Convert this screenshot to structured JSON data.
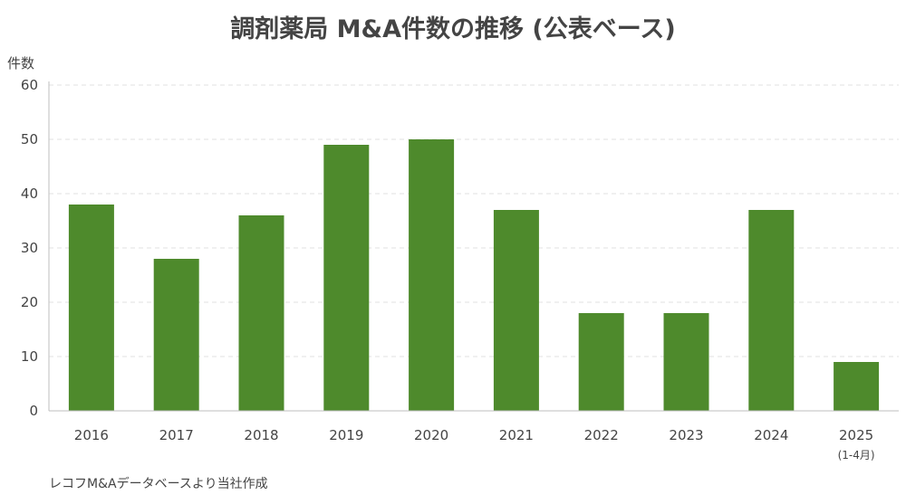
{
  "chart_data": {
    "type": "bar",
    "title": "調剤薬局 M&A件数の推移 (公表ベース)",
    "ylabel": "件数",
    "xlabel": "",
    "ylim": [
      0,
      60
    ],
    "yticks": [
      0,
      10,
      20,
      30,
      40,
      50,
      60
    ],
    "grid": true,
    "categories": [
      "2016",
      "2017",
      "2018",
      "2019",
      "2020",
      "2021",
      "2022",
      "2023",
      "2024",
      "2025"
    ],
    "category_notes": [
      "",
      "",
      "",
      "",
      "",
      "",
      "",
      "",
      "",
      "(1-4月)"
    ],
    "values": [
      38,
      28,
      36,
      49,
      50,
      37,
      18,
      18,
      37,
      9
    ],
    "bar_color": "#4e8a2c",
    "source_note": "レコフM&Aデータベースより当社作成"
  }
}
